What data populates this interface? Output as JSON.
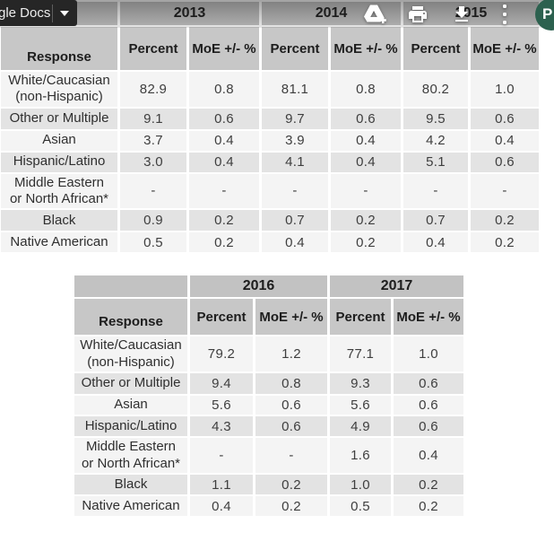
{
  "toolbar": {
    "docs_chip_label": "gle Docs",
    "icons": [
      "add-to-drive-icon",
      "print-icon",
      "download-icon",
      "overflow-menu-icon"
    ],
    "avatar_letter": "P",
    "avatar_color": "#2c614f",
    "chip_color": "#262626"
  },
  "tables": [
    {
      "id": "table-2013-2015",
      "response_header": "Response",
      "year_groups": [
        {
          "year": "2013"
        },
        {
          "year": "2014"
        },
        {
          "year": "2015"
        }
      ],
      "sub_headers": [
        "Percent",
        "MoE +/- %"
      ],
      "rows": [
        {
          "label_lines": [
            "White/Caucasian",
            "(non-Hispanic)"
          ],
          "values": [
            "82.9",
            "0.8",
            "81.1",
            "0.8",
            "80.2",
            "1.0"
          ],
          "shaded": false
        },
        {
          "label_lines": [
            "Other or Multiple"
          ],
          "values": [
            "9.1",
            "0.6",
            "9.7",
            "0.6",
            "9.5",
            "0.6"
          ],
          "shaded": true
        },
        {
          "label_lines": [
            "Asian"
          ],
          "values": [
            "3.7",
            "0.4",
            "3.9",
            "0.4",
            "4.2",
            "0.4"
          ],
          "shaded": false
        },
        {
          "label_lines": [
            "Hispanic/Latino"
          ],
          "values": [
            "3.0",
            "0.4",
            "4.1",
            "0.4",
            "5.1",
            "0.6"
          ],
          "shaded": true
        },
        {
          "label_lines": [
            "Middle Eastern",
            "or North African*"
          ],
          "values": [
            "-",
            "-",
            "-",
            "-",
            "-",
            "-"
          ],
          "shaded": false
        },
        {
          "label_lines": [
            "Black"
          ],
          "values": [
            "0.9",
            "0.2",
            "0.7",
            "0.2",
            "0.7",
            "0.2"
          ],
          "shaded": true
        },
        {
          "label_lines": [
            "Native American"
          ],
          "values": [
            "0.5",
            "0.2",
            "0.4",
            "0.2",
            "0.4",
            "0.2"
          ],
          "shaded": false
        }
      ]
    },
    {
      "id": "table-2016-2017",
      "response_header": "Response",
      "year_groups": [
        {
          "year": "2016"
        },
        {
          "year": "2017"
        }
      ],
      "sub_headers": [
        "Percent",
        "MoE +/- %"
      ],
      "rows": [
        {
          "label_lines": [
            "White/Caucasian",
            "(non-Hispanic)"
          ],
          "values": [
            "79.2",
            "1.2",
            "77.1",
            "1.0"
          ],
          "shaded": false
        },
        {
          "label_lines": [
            "Other or Multiple"
          ],
          "values": [
            "9.4",
            "0.8",
            "9.3",
            "0.6"
          ],
          "shaded": true
        },
        {
          "label_lines": [
            "Asian"
          ],
          "values": [
            "5.6",
            "0.6",
            "5.6",
            "0.6"
          ],
          "shaded": false
        },
        {
          "label_lines": [
            "Hispanic/Latino"
          ],
          "values": [
            "4.3",
            "0.6",
            "4.9",
            "0.6"
          ],
          "shaded": true
        },
        {
          "label_lines": [
            "Middle Eastern",
            "or North African*"
          ],
          "values": [
            "-",
            "-",
            "1.6",
            "0.4"
          ],
          "shaded": false
        },
        {
          "label_lines": [
            "Black"
          ],
          "values": [
            "1.1",
            "0.2",
            "1.0",
            "0.2"
          ],
          "shaded": true
        },
        {
          "label_lines": [
            "Native American"
          ],
          "values": [
            "0.4",
            "0.2",
            "0.5",
            "0.2"
          ],
          "shaded": false
        }
      ]
    }
  ]
}
